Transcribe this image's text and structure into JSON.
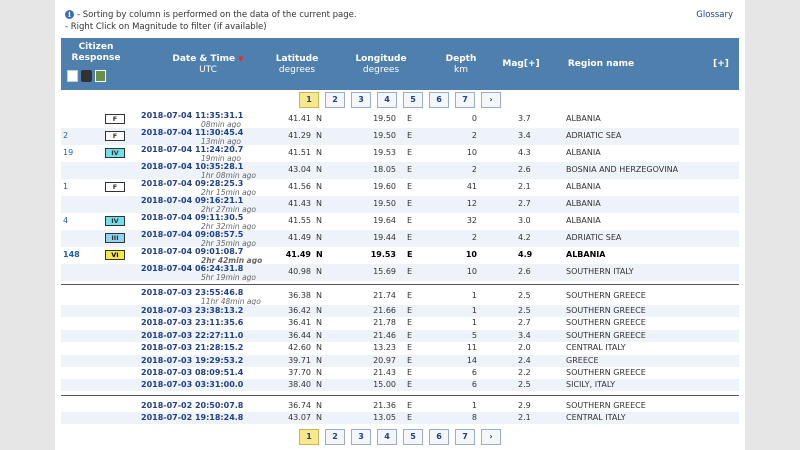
{
  "notes": {
    "line1": "- Sorting by column is performed on the data of the current page.",
    "line2": "- Right Click on Magnitude to filter (if available)"
  },
  "glossary": "Glossary",
  "header": {
    "citizen": "Citizen",
    "response": "Response",
    "datetime": "Date & Time",
    "utc": "UTC",
    "latitude": "Latitude",
    "lat_unit": "degrees",
    "longitude": "Longitude",
    "lon_unit": "degrees",
    "depth": "Depth",
    "depth_unit": "km",
    "mag": "Mag[+]",
    "region": "Region name",
    "expand": "[+]"
  },
  "pager": [
    "1",
    "2",
    "3",
    "4",
    "5",
    "6",
    "7",
    "›"
  ],
  "rows": [
    {
      "cnt": "",
      "int": "F",
      "intColor": "#ffffff",
      "dt": "2018-07-04   11:35:31.1",
      "ago": "08min ago",
      "lat": "41.41",
      "ns": "N",
      "lon": "19.50",
      "ew": "E",
      "dep": "0",
      "mag": "3.7",
      "reg": "ALBANIA"
    },
    {
      "cnt": "2",
      "int": "F",
      "intColor": "#ffffff",
      "dt": "2018-07-04   11:30:45.4",
      "ago": "13min ago",
      "lat": "41.29",
      "ns": "N",
      "lon": "19.50",
      "ew": "E",
      "dep": "2",
      "mag": "3.4",
      "reg": "ADRIATIC SEA"
    },
    {
      "cnt": "19",
      "int": "IV",
      "intColor": "#6fe0e8",
      "dt": "2018-07-04   11:24:20.7",
      "ago": "19min ago",
      "lat": "41.51",
      "ns": "N",
      "lon": "19.53",
      "ew": "E",
      "dep": "10",
      "mag": "4.3",
      "reg": "ALBANIA"
    },
    {
      "cnt": "",
      "int": "",
      "intColor": "",
      "dt": "2018-07-04   10:35:28.1",
      "ago": "1hr 08min ago",
      "lat": "43.04",
      "ns": "N",
      "lon": "18.05",
      "ew": "E",
      "dep": "2",
      "mag": "2.6",
      "reg": "BOSNIA AND HERZEGOVINA"
    },
    {
      "cnt": "1",
      "int": "F",
      "intColor": "#ffffff",
      "dt": "2018-07-04   09:28:25.3",
      "ago": "2hr 15min ago",
      "lat": "41.56",
      "ns": "N",
      "lon": "19.60",
      "ew": "E",
      "dep": "41",
      "mag": "2.1",
      "reg": "ALBANIA"
    },
    {
      "cnt": "",
      "int": "",
      "intColor": "",
      "dt": "2018-07-04   09:16:21.1",
      "ago": "2hr 27min ago",
      "lat": "41.43",
      "ns": "N",
      "lon": "19.50",
      "ew": "E",
      "dep": "12",
      "mag": "2.7",
      "reg": "ALBANIA"
    },
    {
      "cnt": "4",
      "int": "IV",
      "intColor": "#6fe0e8",
      "dt": "2018-07-04   09:11:30.5",
      "ago": "2hr 32min ago",
      "lat": "41.55",
      "ns": "N",
      "lon": "19.64",
      "ew": "E",
      "dep": "32",
      "mag": "3.0",
      "reg": "ALBANIA"
    },
    {
      "cnt": "",
      "int": "III",
      "intColor": "#8fd3f0",
      "dt": "2018-07-04   09:08:57.5",
      "ago": "2hr 35min ago",
      "lat": "41.49",
      "ns": "N",
      "lon": "19.44",
      "ew": "E",
      "dep": "2",
      "mag": "4.2",
      "reg": "ADRIATIC SEA"
    },
    {
      "cnt": "148",
      "int": "VI",
      "intColor": "#f5e94a",
      "dt": "2018-07-04   09:01:08.7",
      "ago": "2hr 42min ago",
      "lat": "41.49",
      "ns": "N",
      "lon": "19.53",
      "ew": "E",
      "dep": "10",
      "mag": "4.9",
      "reg": "ALBANIA",
      "bold": true
    },
    {
      "cnt": "",
      "int": "",
      "intColor": "",
      "dt": "2018-07-04   06:24:31.8",
      "ago": "5hr 19min ago",
      "lat": "40.98",
      "ns": "N",
      "lon": "15.69",
      "ew": "E",
      "dep": "10",
      "mag": "2.6",
      "reg": "SOUTHERN ITALY"
    },
    {
      "cnt": "",
      "int": "",
      "intColor": "",
      "dt": "2018-07-03   23:55:46.8",
      "ago": "11hr 48min ago",
      "lat": "36.38",
      "ns": "N",
      "lon": "21.74",
      "ew": "E",
      "dep": "1",
      "mag": "2.5",
      "reg": "SOUTHERN GREECE"
    },
    {
      "cnt": "",
      "int": "",
      "intColor": "",
      "dt": "2018-07-03   23:38:13.2",
      "ago": "",
      "lat": "36.42",
      "ns": "N",
      "lon": "21.66",
      "ew": "E",
      "dep": "1",
      "mag": "2.5",
      "reg": "SOUTHERN GREECE"
    },
    {
      "cnt": "",
      "int": "",
      "intColor": "",
      "dt": "2018-07-03   23:11:35.6",
      "ago": "",
      "lat": "36.41",
      "ns": "N",
      "lon": "21.78",
      "ew": "E",
      "dep": "1",
      "mag": "2.7",
      "reg": "SOUTHERN GREECE"
    },
    {
      "cnt": "",
      "int": "",
      "intColor": "",
      "dt": "2018-07-03   22:27:11.0",
      "ago": "",
      "lat": "36.44",
      "ns": "N",
      "lon": "21.46",
      "ew": "E",
      "dep": "5",
      "mag": "3.4",
      "reg": "SOUTHERN GREECE"
    },
    {
      "cnt": "",
      "int": "",
      "intColor": "",
      "dt": "2018-07-03   21:28:15.2",
      "ago": "",
      "lat": "42.60",
      "ns": "N",
      "lon": "13.23",
      "ew": "E",
      "dep": "11",
      "mag": "2.0",
      "reg": "CENTRAL ITALY"
    },
    {
      "cnt": "",
      "int": "",
      "intColor": "",
      "dt": "2018-07-03   19:29:53.2",
      "ago": "",
      "lat": "39.71",
      "ns": "N",
      "lon": "20.97",
      "ew": "E",
      "dep": "14",
      "mag": "2.4",
      "reg": "GREECE"
    },
    {
      "cnt": "",
      "int": "",
      "intColor": "",
      "dt": "2018-07-03   08:09:51.4",
      "ago": "",
      "lat": "37.70",
      "ns": "N",
      "lon": "21.43",
      "ew": "E",
      "dep": "6",
      "mag": "2.2",
      "reg": "SOUTHERN GREECE"
    },
    {
      "cnt": "",
      "int": "",
      "intColor": "",
      "dt": "2018-07-03   03:31:00.0",
      "ago": "",
      "lat": "38.40",
      "ns": "N",
      "lon": "15.00",
      "ew": "E",
      "dep": "6",
      "mag": "2.5",
      "reg": "SICILY, ITALY"
    },
    {
      "cnt": "",
      "int": "",
      "intColor": "",
      "dt": "2018-07-02   20:50:07.8",
      "ago": "",
      "lat": "36.74",
      "ns": "N",
      "lon": "21.36",
      "ew": "E",
      "dep": "1",
      "mag": "2.9",
      "reg": "SOUTHERN GREECE"
    },
    {
      "cnt": "",
      "int": "",
      "intColor": "",
      "dt": "2018-07-02   19:18:24.8",
      "ago": "",
      "lat": "43.07",
      "ns": "N",
      "lon": "13.05",
      "ew": "E",
      "dep": "8",
      "mag": "2.1",
      "reg": "CENTRAL ITALY"
    }
  ]
}
